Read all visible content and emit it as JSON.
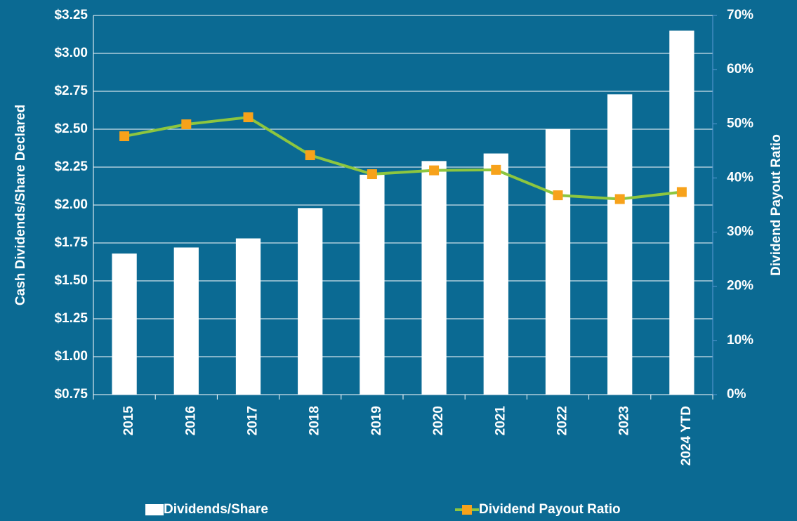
{
  "chart_data": {
    "type": "bar-line",
    "categories": [
      "2015",
      "2016",
      "2017",
      "2018",
      "2019",
      "2020",
      "2021",
      "2022",
      "2023",
      "2024 YTD"
    ],
    "series": [
      {
        "name": "Dividends/Share",
        "type": "bar",
        "color": "#ffffff",
        "values": [
          1.68,
          1.72,
          1.78,
          1.98,
          2.2,
          2.29,
          2.34,
          2.5,
          2.73,
          3.15
        ]
      },
      {
        "name": "Dividend Payout Ratio",
        "type": "line",
        "axis": "y2",
        "color": "#8dc63f",
        "marker_color": "#f7a21b",
        "values": [
          47.7,
          49.9,
          51.2,
          44.2,
          40.7,
          41.4,
          41.5,
          36.8,
          36.1,
          37.4
        ]
      }
    ],
    "ylabel": "Cash Dividends/Share Declared",
    "y2label": "Dividend Payout Ratio",
    "ylim": [
      0.75,
      3.25
    ],
    "yticks": [
      {
        "value": 0.75,
        "label": "$0.75"
      },
      {
        "value": 1.0,
        "label": "$1.00"
      },
      {
        "value": 1.25,
        "label": "$1.25"
      },
      {
        "value": 1.5,
        "label": "$1.50"
      },
      {
        "value": 1.75,
        "label": "$1.75"
      },
      {
        "value": 2.0,
        "label": "$2.00"
      },
      {
        "value": 2.25,
        "label": "$2.25"
      },
      {
        "value": 2.5,
        "label": "$2.50"
      },
      {
        "value": 2.75,
        "label": "$2.75"
      },
      {
        "value": 3.0,
        "label": "$3.00"
      },
      {
        "value": 3.25,
        "label": "$3.25"
      }
    ],
    "y2lim": [
      0,
      70
    ],
    "y2ticks": [
      {
        "value": 0,
        "label": "0%"
      },
      {
        "value": 10,
        "label": "10%"
      },
      {
        "value": 20,
        "label": "20%"
      },
      {
        "value": 30,
        "label": "30%"
      },
      {
        "value": 40,
        "label": "40%"
      },
      {
        "value": 50,
        "label": "50%"
      },
      {
        "value": 60,
        "label": "60%"
      },
      {
        "value": 70,
        "label": "70%"
      }
    ],
    "grid": true,
    "legend": "bottom"
  }
}
